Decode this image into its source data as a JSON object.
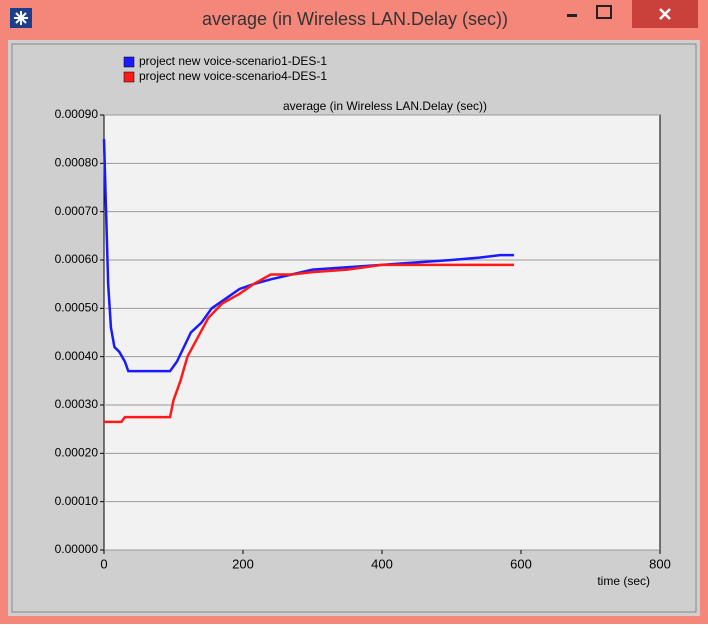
{
  "window": {
    "title": "average (in Wireless LAN.Delay (sec))"
  },
  "chart_data": {
    "type": "line",
    "title": "average (in Wireless LAN.Delay (sec))",
    "x_label": "time (sec)",
    "xlim": [
      0,
      800
    ],
    "xticks": [
      0,
      200,
      400,
      600,
      800
    ],
    "ylim": [
      0,
      0.0009
    ],
    "yticks": [
      {
        "value": 0,
        "label": "0.00000"
      },
      {
        "value": 0.0001,
        "label": "0.00010"
      },
      {
        "value": 0.0002,
        "label": "0.00020"
      },
      {
        "value": 0.0003,
        "label": "0.00030"
      },
      {
        "value": 0.0004,
        "label": "0.00040"
      },
      {
        "value": 0.0005,
        "label": "0.00050"
      },
      {
        "value": 0.0006,
        "label": "0.00060"
      },
      {
        "value": 0.0007,
        "label": "0.00070"
      },
      {
        "value": 0.0008,
        "label": "0.00080"
      },
      {
        "value": 0.0009,
        "label": "0.00090"
      }
    ],
    "grid": true,
    "series": [
      {
        "name": "project new voice-scenario1-DES-1",
        "color": "#1a1aff",
        "x": [
          0,
          3,
          6,
          10,
          15,
          22,
          30,
          35,
          60,
          95,
          105,
          115,
          125,
          140,
          155,
          175,
          195,
          215,
          240,
          270,
          300,
          350,
          400,
          450,
          500,
          540,
          570,
          590
        ],
        "values": [
          0.00085,
          0.0007,
          0.00055,
          0.00046,
          0.00042,
          0.00041,
          0.00039,
          0.00037,
          0.00037,
          0.00037,
          0.00039,
          0.00042,
          0.00045,
          0.00047,
          0.0005,
          0.00052,
          0.00054,
          0.00055,
          0.00056,
          0.00057,
          0.00058,
          0.000585,
          0.00059,
          0.000595,
          0.0006,
          0.000605,
          0.00061,
          0.00061
        ]
      },
      {
        "name": "project new voice-scenario4-DES-1",
        "color": "#ff1a1a",
        "x": [
          0,
          25,
          30,
          95,
          100,
          110,
          120,
          135,
          150,
          170,
          195,
          215,
          240,
          270,
          300,
          350,
          400,
          450,
          500,
          550,
          590
        ],
        "values": [
          0.000265,
          0.000265,
          0.000275,
          0.000275,
          0.00031,
          0.00035,
          0.0004,
          0.00044,
          0.00048,
          0.00051,
          0.00053,
          0.00055,
          0.00057,
          0.00057,
          0.000575,
          0.00058,
          0.00059,
          0.00059,
          0.00059,
          0.00059,
          0.00059
        ]
      }
    ]
  }
}
